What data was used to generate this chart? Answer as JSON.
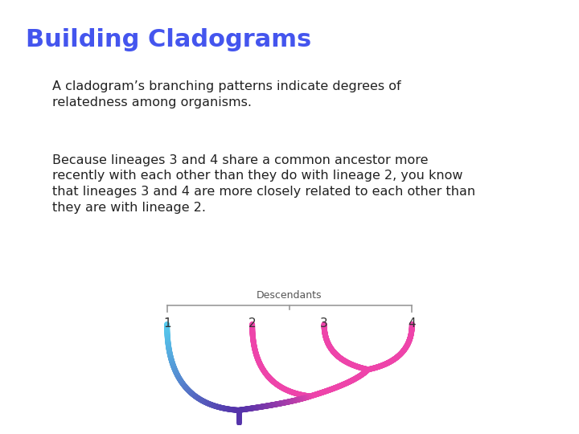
{
  "title": "Building Cladograms",
  "title_color": "#4455ee",
  "title_fontsize": 22,
  "body_text_1": "A cladogram’s branching patterns indicate degrees of\nrelatedness among organisms.",
  "body_text_2": "Because lineages 3 and 4 share a common ancestor more\nrecently with each other than they do with lineage 2, you know\nthat lineages 3 and 4 are more closely related to each other than\nthey are with lineage 2.",
  "body_text_color": "#222222",
  "body_fontsize": 11.5,
  "background_color": "#ffffff",
  "descendants_label": "Descendants",
  "lineage_labels": [
    "1",
    "2",
    "3",
    "4"
  ],
  "cyan_color": "#55CCEE",
  "pink_color": "#EE44AA",
  "stem_color": "#5533AA",
  "line_width": 5,
  "bracket_color": "#999999",
  "label_color": "#333333"
}
